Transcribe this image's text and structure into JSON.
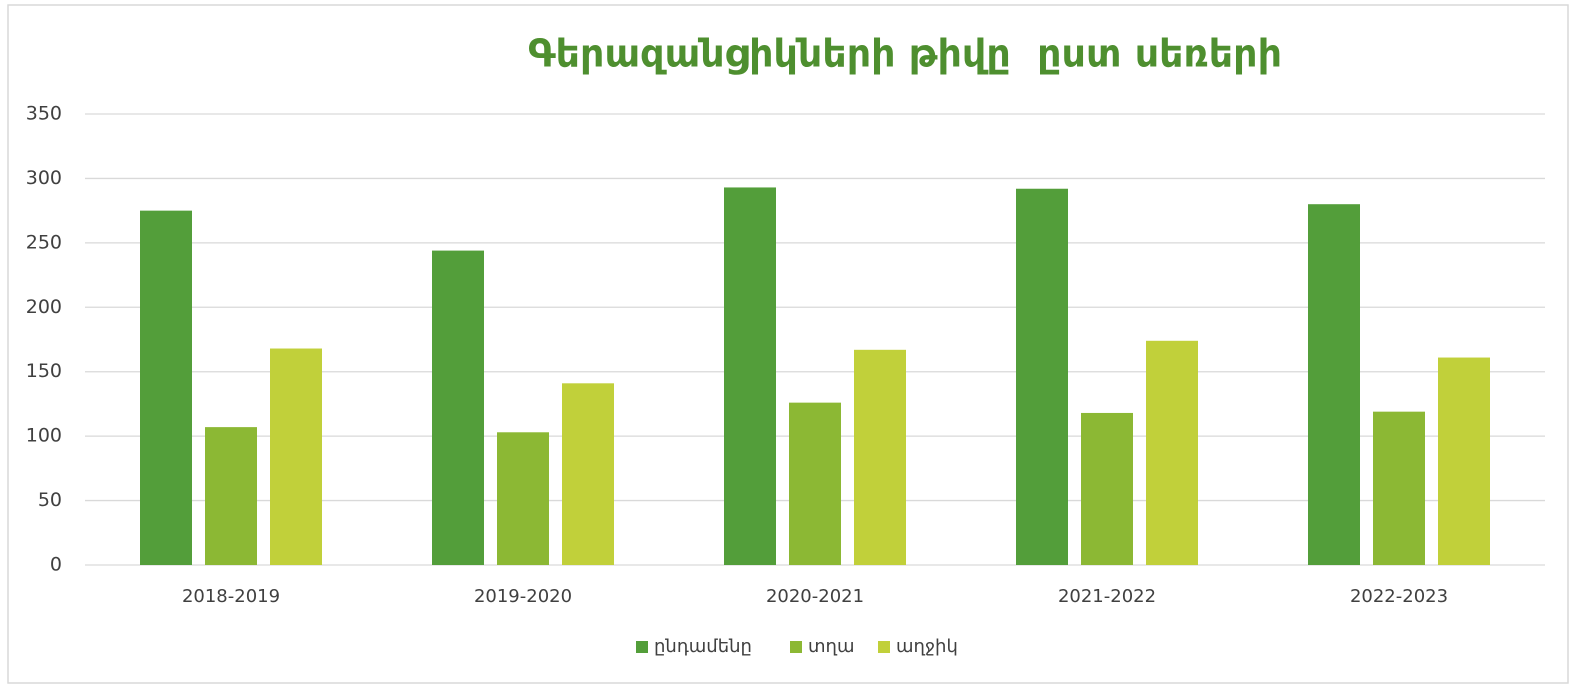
{
  "chart_data": {
    "type": "bar",
    "title": "Գերազանցիկների թիվը  ըստ սեռերի",
    "categories": [
      "2018-2019",
      "2019-2020",
      "2020-2021",
      "2021-2022",
      "2022-2023"
    ],
    "series": [
      {
        "name": "ընդամենը",
        "color": "#539e3a",
        "values": [
          275,
          244,
          293,
          292,
          280
        ]
      },
      {
        "name": "տղա",
        "color": "#8cb834",
        "values": [
          107,
          103,
          126,
          118,
          119
        ]
      },
      {
        "name": "աղջիկ",
        "color": "#c1d03a",
        "values": [
          168,
          141,
          167,
          174,
          161
        ]
      }
    ],
    "ylim": [
      0,
      350
    ],
    "yticks": [
      0,
      50,
      100,
      150,
      200,
      250,
      300,
      350
    ],
    "grid": true,
    "legend": "bottom"
  }
}
